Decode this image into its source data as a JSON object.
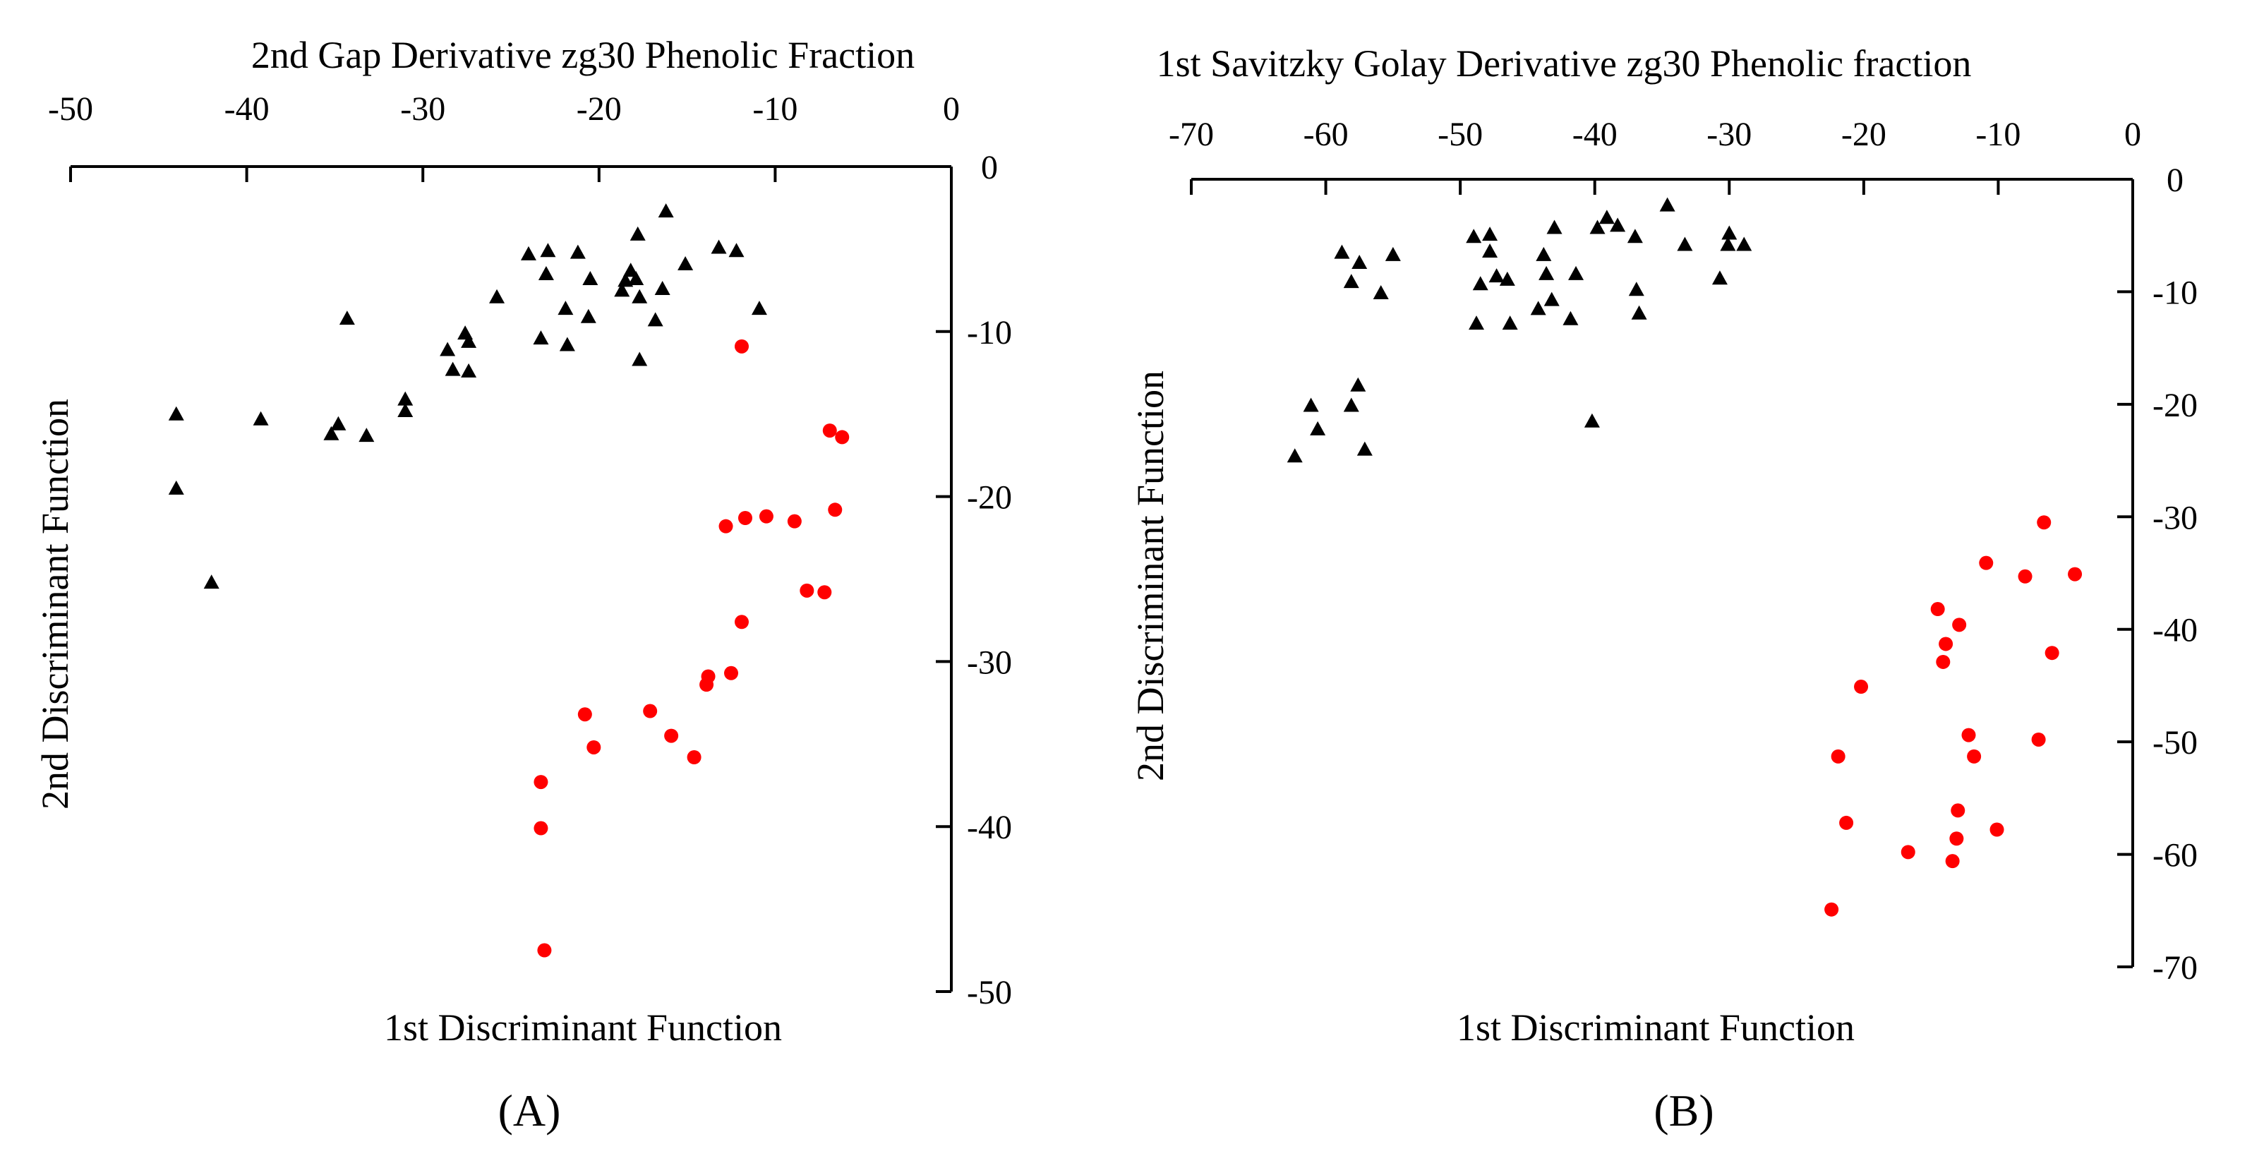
{
  "colors": {
    "series_triangle": "#000000",
    "series_circle": "#ff0000",
    "axis": "#000000"
  },
  "chart_data": [
    {
      "type": "scatter",
      "panel_label": "(A)",
      "title": "2nd Gap Derivative zg30 Phenolic Fraction",
      "xlabel": "1st Discriminant Function",
      "ylabel": "2nd Discriminant Function",
      "xlim": [
        -50,
        0
      ],
      "ylim": [
        -50,
        0
      ],
      "xticks": [
        -50,
        -40,
        -30,
        -20,
        -10,
        0
      ],
      "yticks": [
        0,
        -10,
        -20,
        -30,
        -40,
        -50
      ],
      "xtick_labels": [
        "-50",
        "-40",
        "-30",
        "-20",
        "-10",
        "0"
      ],
      "ytick_labels": [
        "0",
        "-10",
        "-20",
        "-30",
        "-40",
        "-50"
      ],
      "x_axis_position": "top",
      "y_axis_position": "right",
      "series": [
        {
          "name": "triangles",
          "marker": "triangle",
          "color": "#000000",
          "points": [
            [
              -44,
              -15
            ],
            [
              -44,
              -19.5
            ],
            [
              -42,
              -25.2
            ],
            [
              -39.2,
              -15.3
            ],
            [
              -35.2,
              -16.2
            ],
            [
              -34.8,
              -15.6
            ],
            [
              -34.3,
              -9.2
            ],
            [
              -33.2,
              -16.3
            ],
            [
              -31,
              -14.8
            ],
            [
              -31,
              -14.1
            ],
            [
              -28.6,
              -11.1
            ],
            [
              -28.3,
              -12.3
            ],
            [
              -27.6,
              -10.1
            ],
            [
              -27.4,
              -12.4
            ],
            [
              -27.4,
              -10.6
            ],
            [
              -25.8,
              -7.9
            ],
            [
              -24,
              -5.3
            ],
            [
              -23.3,
              -10.4
            ],
            [
              -23,
              -6.5
            ],
            [
              -22.9,
              -5.1
            ],
            [
              -21.9,
              -8.6
            ],
            [
              -21.8,
              -10.8
            ],
            [
              -21.2,
              -5.2
            ],
            [
              -20.6,
              -9.1
            ],
            [
              -20.5,
              -6.8
            ],
            [
              -18.7,
              -7.5
            ],
            [
              -18.5,
              -6.9
            ],
            [
              -18.2,
              -6.3
            ],
            [
              -17.9,
              -6.8
            ],
            [
              -17.8,
              -4.1
            ],
            [
              -17.7,
              -7.9
            ],
            [
              -17.7,
              -11.7
            ],
            [
              -16.8,
              -9.3
            ],
            [
              -16.4,
              -7.4
            ],
            [
              -16.2,
              -2.7
            ],
            [
              -15.1,
              -5.9
            ],
            [
              -13.2,
              -4.9
            ],
            [
              -12.2,
              -5.1
            ],
            [
              -10.9,
              -8.6
            ]
          ]
        },
        {
          "name": "circles",
          "marker": "circle",
          "color": "#ff0000",
          "points": [
            [
              -11.9,
              -10.9
            ],
            [
              -6.9,
              -16
            ],
            [
              -6.2,
              -16.4
            ],
            [
              -6.6,
              -20.8
            ],
            [
              -8.9,
              -21.5
            ],
            [
              -10.5,
              -21.2
            ],
            [
              -11.7,
              -21.3
            ],
            [
              -12.8,
              -21.8
            ],
            [
              -8.2,
              -25.7
            ],
            [
              -7.2,
              -25.8
            ],
            [
              -11.9,
              -27.6
            ],
            [
              -12.5,
              -30.7
            ],
            [
              -13.8,
              -30.9
            ],
            [
              -13.9,
              -31.4
            ],
            [
              -14.6,
              -35.8
            ],
            [
              -15.9,
              -34.5
            ],
            [
              -17.1,
              -33
            ],
            [
              -20.8,
              -33.2
            ],
            [
              -20.3,
              -35.2
            ],
            [
              -23.3,
              -37.3
            ],
            [
              -23.3,
              -40.1
            ],
            [
              -23.1,
              -47.5
            ]
          ]
        }
      ]
    },
    {
      "type": "scatter",
      "panel_label": "(B)",
      "title": "1st Savitzky Golay Derivative zg30 Phenolic fraction",
      "xlabel": "1st Discriminant Function",
      "ylabel": "2nd Discriminant Function",
      "xlim": [
        -70,
        0
      ],
      "ylim": [
        -70,
        0
      ],
      "xticks": [
        -70,
        -60,
        -50,
        -40,
        -30,
        -20,
        -10,
        0
      ],
      "yticks": [
        0,
        -10,
        -20,
        -30,
        -40,
        -50,
        -60,
        -70
      ],
      "xtick_labels": [
        "-70",
        "-60",
        "-50",
        "-40",
        "-30",
        "-20",
        "-10",
        "0"
      ],
      "ytick_labels": [
        "0",
        "-10",
        "-20",
        "-30",
        "-40",
        "-50",
        "-60",
        "-70"
      ],
      "x_axis_position": "top",
      "y_axis_position": "right",
      "series": [
        {
          "name": "triangles",
          "marker": "triangle",
          "color": "#000000",
          "points": [
            [
              -62.3,
              -24.6
            ],
            [
              -61.1,
              -20.1
            ],
            [
              -60.6,
              -22.2
            ],
            [
              -58.8,
              -6.5
            ],
            [
              -58.1,
              -9.1
            ],
            [
              -58.1,
              -20.1
            ],
            [
              -57.6,
              -18.3
            ],
            [
              -57.5,
              -7.4
            ],
            [
              -57.1,
              -24
            ],
            [
              -55.9,
              -10.1
            ],
            [
              -55,
              -6.7
            ],
            [
              -49,
              -5.1
            ],
            [
              -48.8,
              -12.8
            ],
            [
              -48.5,
              -9.3
            ],
            [
              -47.8,
              -6.4
            ],
            [
              -47.8,
              -4.9
            ],
            [
              -47.3,
              -8.6
            ],
            [
              -46.5,
              -8.9
            ],
            [
              -46.3,
              -12.8
            ],
            [
              -44.2,
              -11.5
            ],
            [
              -43.8,
              -6.7
            ],
            [
              -43.6,
              -8.4
            ],
            [
              -43.2,
              -10.7
            ],
            [
              -43,
              -4.3
            ],
            [
              -41.8,
              -12.4
            ],
            [
              -41.4,
              -8.4
            ],
            [
              -40.2,
              -21.5
            ],
            [
              -39.8,
              -4.3
            ],
            [
              -39.1,
              -3.4
            ],
            [
              -38.3,
              -4.1
            ],
            [
              -37,
              -5.1
            ],
            [
              -36.9,
              -9.8
            ],
            [
              -36.7,
              -11.9
            ],
            [
              -34.6,
              -2.3
            ],
            [
              -33.3,
              -5.8
            ],
            [
              -30.7,
              -8.8
            ],
            [
              -30.1,
              -5.8
            ],
            [
              -30,
              -4.8
            ],
            [
              -28.9,
              -5.8
            ]
          ]
        },
        {
          "name": "circles",
          "marker": "circle",
          "color": "#ff0000",
          "points": [
            [
              -6.6,
              -30.5
            ],
            [
              -10.9,
              -34.1
            ],
            [
              -8,
              -35.3
            ],
            [
              -4.3,
              -35.1
            ],
            [
              -14.5,
              -38.2
            ],
            [
              -12.9,
              -39.6
            ],
            [
              -13.9,
              -41.3
            ],
            [
              -14.1,
              -42.9
            ],
            [
              -6,
              -42.1
            ],
            [
              -20.2,
              -45.1
            ],
            [
              -12.2,
              -49.4
            ],
            [
              -7,
              -49.8
            ],
            [
              -11.8,
              -51.3
            ],
            [
              -21.9,
              -51.3
            ],
            [
              -13,
              -56.1
            ],
            [
              -21.3,
              -57.2
            ],
            [
              -10.1,
              -57.8
            ],
            [
              -13.1,
              -58.6
            ],
            [
              -16.7,
              -59.8
            ],
            [
              -13.4,
              -60.6
            ],
            [
              -22.4,
              -64.9
            ]
          ]
        }
      ]
    }
  ]
}
